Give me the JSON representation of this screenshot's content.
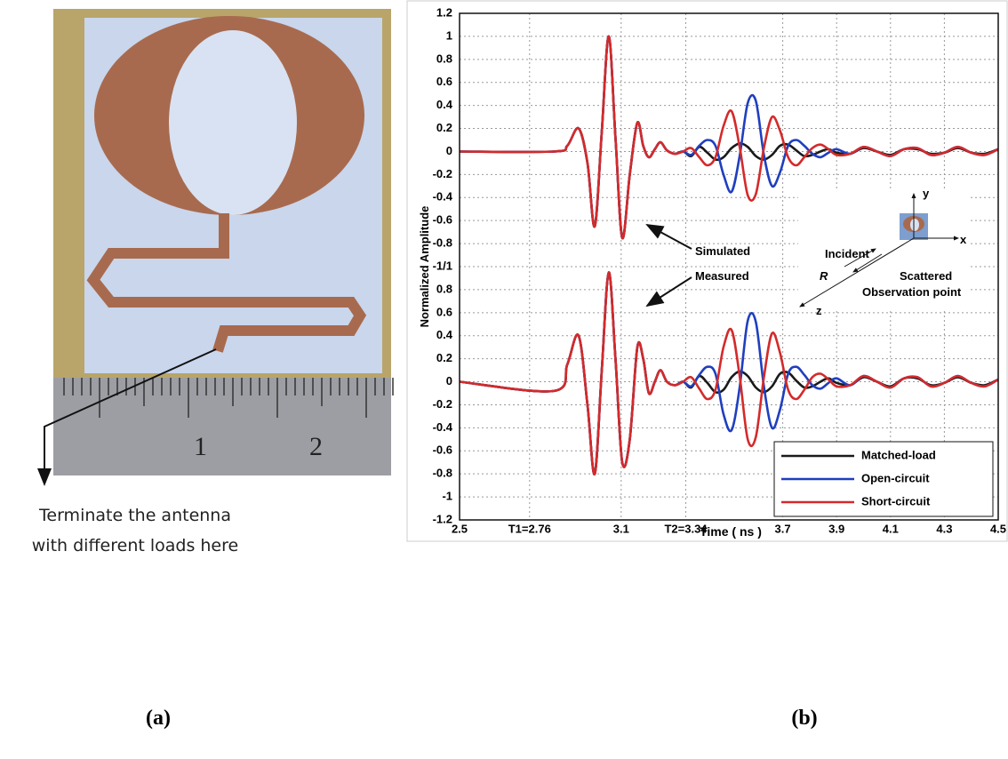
{
  "panel_a": {
    "ruler_labels": [
      "1",
      "2"
    ],
    "caption": [
      "Terminate the antenna",
      "with different loads here"
    ],
    "label": "(a)"
  },
  "panel_b": {
    "label": "(b)",
    "inset": {
      "axis_labels": [
        "y",
        "x",
        "z"
      ],
      "labels": [
        "Incident",
        "R",
        "Scattered",
        "Observation point"
      ]
    }
  },
  "chart_data": [
    {
      "type": "line",
      "ylabel": "Normalized Amplitude",
      "annotation": "Simulated",
      "x": [
        2.5,
        2.85,
        2.9,
        2.942,
        2.975,
        3.002,
        3.028,
        3.054,
        3.079,
        3.104,
        3.132,
        3.16,
        3.182,
        3.203,
        3.225,
        3.246,
        3.27,
        3.3,
        3.33,
        3.36,
        3.39,
        3.42,
        3.45,
        3.48,
        3.51,
        3.54,
        3.57,
        3.6,
        3.63,
        3.66,
        3.69,
        3.72,
        3.75,
        3.78,
        3.81,
        3.84,
        3.87,
        3.9,
        3.95,
        4.0,
        4.05,
        4.1,
        4.15,
        4.2,
        4.25,
        4.3,
        4.35,
        4.4,
        4.45,
        4.5
      ],
      "xlim": [
        2.5,
        4.5
      ],
      "ylim": [
        -1,
        1.2
      ],
      "yticks": [
        1.2,
        1,
        0.8,
        0.6,
        0.4,
        0.2,
        0,
        -0.2,
        -0.4,
        -0.6,
        -0.8,
        {
          "value": -1,
          "label": "-1/1"
        }
      ],
      "grid": true,
      "series": [
        {
          "color": "#1a1a1a",
          "values": [
            0,
            0,
            0.05,
            0.2,
            -0.1,
            -0.65,
            0.17,
            1.0,
            0.12,
            -0.75,
            -0.2,
            0.25,
            0.05,
            -0.05,
            0.02,
            0.08,
            0.01,
            -0.02,
            0,
            -0.04,
            0.04,
            -0.01,
            -0.07,
            -0.05,
            0.03,
            0.07,
            0.04,
            -0.04,
            -0.07,
            -0.03,
            0.05,
            0.06,
            0.01,
            -0.04,
            -0.03,
            0,
            0.02,
            -0.01,
            -0.02,
            0.03,
            0,
            -0.03,
            0.02,
            0.02,
            -0.02,
            -0.01,
            0.03,
            -0.01,
            -0.02,
            0.02
          ]
        },
        {
          "color": "#1f3fbf",
          "values": [
            0,
            0,
            0.05,
            0.2,
            -0.1,
            -0.65,
            0.17,
            1.0,
            0.12,
            -0.75,
            -0.2,
            0.25,
            0.05,
            -0.05,
            0.02,
            0.08,
            0.01,
            -0.02,
            0,
            -0.03,
            0.05,
            0.1,
            0.05,
            -0.2,
            -0.35,
            -0.04,
            0.42,
            0.44,
            -0.03,
            -0.3,
            -0.18,
            0.05,
            0.1,
            0.05,
            -0.02,
            -0.05,
            -0.01,
            0.02,
            -0.02,
            0.04,
            0,
            -0.04,
            0.02,
            0.03,
            -0.03,
            -0.01,
            0.04,
            -0.01,
            -0.03,
            0.02
          ]
        },
        {
          "color": "#d42a2a",
          "values": [
            0,
            0,
            0.05,
            0.2,
            -0.1,
            -0.65,
            0.17,
            1.0,
            0.12,
            -0.75,
            -0.2,
            0.25,
            0.05,
            -0.05,
            0.02,
            0.08,
            0.01,
            -0.02,
            0,
            0.03,
            -0.05,
            -0.12,
            -0.05,
            0.22,
            0.35,
            0.04,
            -0.38,
            -0.37,
            0.03,
            0.3,
            0.18,
            -0.05,
            -0.12,
            -0.05,
            0.03,
            0.06,
            0.02,
            -0.03,
            -0.02,
            0.04,
            0,
            -0.04,
            0.02,
            0.03,
            -0.03,
            -0.01,
            0.04,
            -0.01,
            -0.03,
            0.02
          ]
        }
      ]
    },
    {
      "type": "line",
      "xlabel": "Time ( ns )",
      "annotation": "Measured",
      "x": [
        2.5,
        2.85,
        2.9,
        2.942,
        2.975,
        3.002,
        3.028,
        3.054,
        3.079,
        3.104,
        3.132,
        3.16,
        3.182,
        3.203,
        3.225,
        3.246,
        3.27,
        3.3,
        3.33,
        3.36,
        3.39,
        3.42,
        3.45,
        3.48,
        3.51,
        3.54,
        3.57,
        3.6,
        3.63,
        3.66,
        3.69,
        3.72,
        3.75,
        3.78,
        3.81,
        3.84,
        3.87,
        3.9,
        3.95,
        4.0,
        4.05,
        4.1,
        4.15,
        4.2,
        4.25,
        4.3,
        4.35,
        4.4,
        4.45,
        4.5
      ],
      "xlim": [
        2.5,
        4.5
      ],
      "xticks": [
        2.5,
        {
          "value": 2.76,
          "label": "T1=2.76"
        },
        3.1,
        {
          "value": 3.34,
          "label": "T2=3.34"
        },
        3.7,
        3.9,
        4.1,
        4.3,
        4.5
      ],
      "ylim": [
        -1.2,
        1
      ],
      "yticks": [
        0.8,
        0.6,
        0.4,
        0.2,
        0,
        -0.2,
        -0.4,
        -0.6,
        -0.8,
        -1,
        -1.2
      ],
      "grid": true,
      "legend": "lower right",
      "series": [
        {
          "name": "Matched-load",
          "color": "#1a1a1a",
          "values": [
            0,
            -0.08,
            0.15,
            0.4,
            -0.2,
            -0.8,
            0.1,
            0.95,
            0.2,
            -0.7,
            -0.5,
            0.3,
            0.2,
            -0.1,
            0,
            0.1,
            0,
            -0.03,
            0,
            -0.05,
            0.05,
            -0.01,
            -0.09,
            -0.07,
            0.04,
            0.09,
            0.05,
            -0.05,
            -0.09,
            -0.04,
            0.07,
            0.08,
            0.01,
            -0.05,
            -0.04,
            0,
            0.03,
            -0.01,
            -0.03,
            0.04,
            0,
            -0.04,
            0.03,
            0.03,
            -0.03,
            -0.01,
            0.04,
            -0.01,
            -0.03,
            0.02
          ]
        },
        {
          "name": "Open-circuit",
          "color": "#1f3fbf",
          "values": [
            0,
            -0.08,
            0.15,
            0.4,
            -0.2,
            -0.8,
            0.1,
            0.95,
            0.2,
            -0.7,
            -0.5,
            0.3,
            0.2,
            -0.1,
            0,
            0.1,
            0,
            -0.03,
            0,
            -0.04,
            0.06,
            0.13,
            0.07,
            -0.28,
            -0.42,
            -0.05,
            0.53,
            0.52,
            -0.04,
            -0.4,
            -0.24,
            0.07,
            0.13,
            0.06,
            -0.03,
            -0.06,
            -0.01,
            0.03,
            -0.03,
            0.05,
            0,
            -0.05,
            0.03,
            0.04,
            -0.04,
            -0.01,
            0.05,
            -0.01,
            -0.04,
            0.02
          ]
        },
        {
          "name": "Short-circuit",
          "color": "#d42a2a",
          "values": [
            0,
            -0.08,
            0.15,
            0.4,
            -0.2,
            -0.8,
            0.1,
            0.95,
            0.2,
            -0.7,
            -0.5,
            0.3,
            0.2,
            -0.1,
            0,
            0.1,
            0,
            -0.03,
            0,
            0.04,
            -0.06,
            -0.15,
            -0.07,
            0.3,
            0.45,
            0.05,
            -0.5,
            -0.48,
            0.04,
            0.42,
            0.25,
            -0.07,
            -0.15,
            -0.07,
            0.04,
            0.07,
            0.02,
            -0.04,
            -0.03,
            0.05,
            0,
            -0.05,
            0.03,
            0.04,
            -0.04,
            -0.01,
            0.05,
            -0.01,
            -0.04,
            0.02
          ]
        }
      ]
    }
  ]
}
